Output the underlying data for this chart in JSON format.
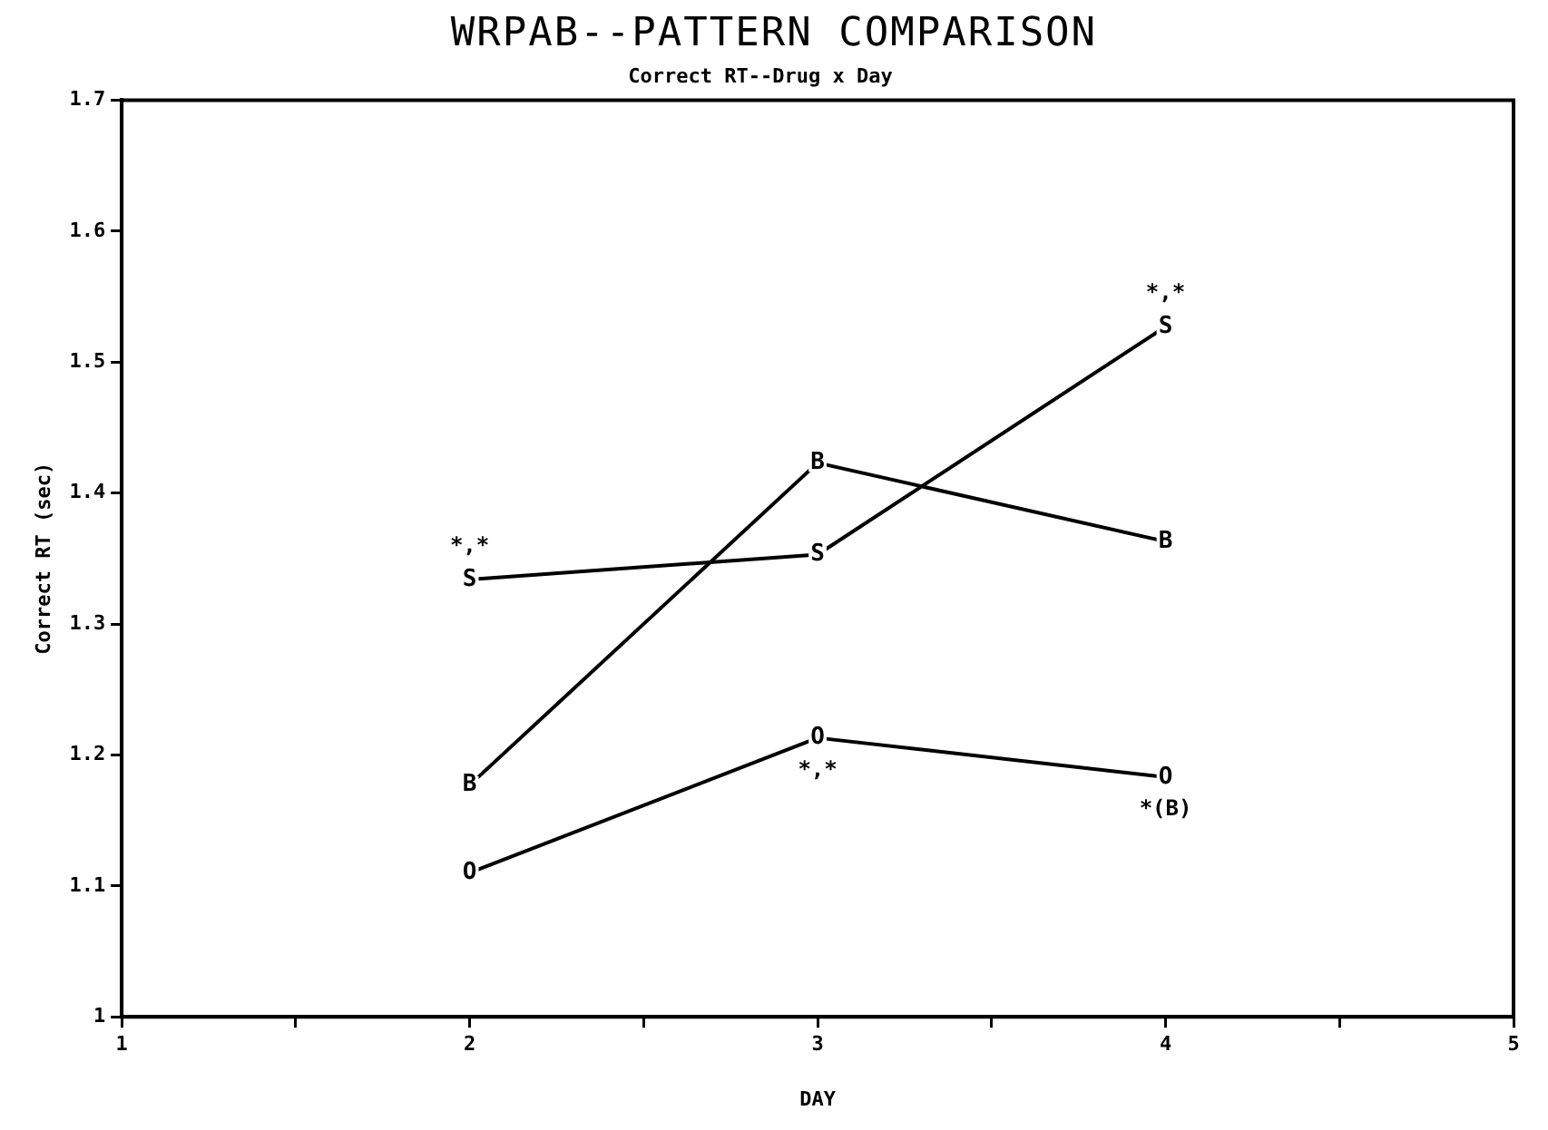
{
  "chart_data": {
    "type": "line",
    "title": "WRPAB--PATTERN COMPARISON",
    "subtitle": "Correct RT--Drug x Day",
    "xlabel": "DAY",
    "ylabel": "Correct RT (sec)",
    "x": [
      2,
      3,
      4
    ],
    "series": [
      {
        "name": "S",
        "color": "#000000",
        "values": [
          1.334,
          1.353,
          1.527
        ]
      },
      {
        "name": "B",
        "color": "#000000",
        "values": [
          1.177,
          1.423,
          1.363
        ]
      },
      {
        "name": "O",
        "color": "#000000",
        "values": [
          1.11,
          1.213,
          1.183
        ]
      }
    ],
    "xlim": [
      1,
      5
    ],
    "xticks": [
      1,
      {
        "value": 1.5,
        "label": null
      },
      2,
      {
        "value": 2.5,
        "label": null
      },
      3,
      {
        "value": 3.5,
        "label": null
      },
      4,
      {
        "value": 4.5,
        "label": null
      },
      5
    ],
    "ylim": [
      1,
      1.7
    ],
    "yticks": [
      1,
      1.1,
      1.2,
      1.3,
      1.4,
      1.5,
      1.6,
      1.7
    ],
    "annotations": [
      {
        "text": "*,*",
        "x": 2,
        "y": 1.334
      },
      {
        "text": "*,*",
        "x": 4,
        "y": 1.527
      },
      {
        "text": "*,*",
        "x": 3,
        "y": 1.213
      },
      {
        "text": "*(B)",
        "x": 4,
        "y": 1.183
      }
    ],
    "grid": false,
    "legend": false,
    "marker": "square",
    "line_style": "solid"
  }
}
